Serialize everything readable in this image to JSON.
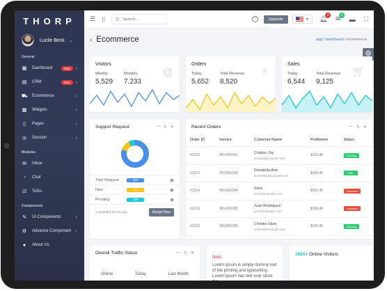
{
  "brand": "THORP",
  "user": {
    "name": "Lucile Beck"
  },
  "colors": {
    "accent_cyan": "#1fc8d8",
    "accent_blue": "#4a8fe7",
    "accent_yellow": "#f5c518",
    "pending": "#2ecc71",
    "paid": "#2ecc71",
    "canceled": "#e74c3c",
    "sidebar": "#2d3552"
  },
  "sidebar": {
    "section_general": "General",
    "general": [
      {
        "icon": "dashboard-icon",
        "glyph": "▦",
        "label": "Dashboard",
        "badge": "New",
        "has_chevron": true
      },
      {
        "icon": "crm-icon",
        "glyph": "▤",
        "label": "CRM",
        "badge": "New",
        "has_chevron": true
      },
      {
        "icon": "ecommerce-icon",
        "glyph": "⛟",
        "label": "Ecommerce",
        "badge": "",
        "has_chevron": true
      },
      {
        "icon": "widgets-icon",
        "glyph": "▩",
        "label": "Widgets",
        "badge": "",
        "has_chevron": true
      },
      {
        "icon": "pages-icon",
        "glyph": "▯",
        "label": "Pages",
        "badge": "",
        "has_chevron": true
      },
      {
        "icon": "session-icon",
        "glyph": "◎",
        "label": "Session",
        "badge": "",
        "has_chevron": true
      }
    ],
    "section_modules": "Modules",
    "modules": [
      {
        "icon": "inbox-icon",
        "glyph": "✉",
        "label": "Inbox"
      },
      {
        "icon": "chat-icon",
        "glyph": "◔",
        "label": "Chat"
      },
      {
        "icon": "todo-icon",
        "glyph": "☑",
        "label": "ToDo"
      }
    ],
    "section_components": "Components",
    "components": [
      {
        "icon": "ui-components-icon",
        "glyph": "✎",
        "label": "UI Components",
        "has_chevron": true
      },
      {
        "icon": "advance-component-icon",
        "glyph": "⚙",
        "label": "Advance Component",
        "has_chevron": true
      },
      {
        "icon": "about-us-icon",
        "glyph": "●",
        "label": "About Us",
        "has_chevron": false
      }
    ]
  },
  "topbar": {
    "search_placeholder": "Search...",
    "upgrade_label": "Upgrade",
    "notification_count": "2",
    "message_count": "4"
  },
  "page": {
    "title": "Ecommerce",
    "breadcrumb": {
      "app": "app",
      "dashboard": "dashboard",
      "current": "ecommerce"
    }
  },
  "stats": {
    "visitors": {
      "title": "Visitors",
      "weekly_label": "Weekly",
      "weekly_value": "5,529",
      "monthly_label": "Monthly",
      "monthly_value": "7,233"
    },
    "orders": {
      "title": "Orders",
      "today_label": "Today",
      "today_value": "5,652",
      "revenue_label": "Total Revenue",
      "revenue_value": "8,520"
    },
    "sales": {
      "title": "Sales",
      "today_label": "Today",
      "today_value": "6,544",
      "revenue_label": "Total Revenue",
      "revenue_value": "9,125"
    }
  },
  "support": {
    "title": "Support Request",
    "donut": [
      0.8,
      0.12,
      0.08
    ],
    "rows": [
      {
        "label": "Total Request",
        "value": "250",
        "color": "#4a8fe7"
      },
      {
        "label": "New",
        "value": "25",
        "color": "#f5c518"
      },
      {
        "label": "Pending",
        "value": "125",
        "color": "#1fc8d8"
      }
    ],
    "updated": "Updated 10 min ago",
    "assign_label": "Assign Now"
  },
  "orders_table": {
    "title": "Recent Orders",
    "headers": [
      "Order ID",
      "Invoice",
      "Customer Name",
      "Profitment",
      "Status"
    ],
    "rows": [
      {
        "id": "#1212",
        "invoice": "INV-001001",
        "name": "Cristian Joy",
        "email": "cristian@example.com",
        "amount": "$120.40",
        "status": "Pending",
        "status_color": "#2ecc71"
      },
      {
        "id": "#1213",
        "invoice": "INV-001002",
        "name": "Donatella Arin",
        "email": "donatella@example.com",
        "amount": "$180.40",
        "status": "Paid",
        "status_color": "#2ecc71"
      },
      {
        "id": "#1214",
        "invoice": "INV-001004",
        "name": "Slurs",
        "email": "slurs@example.com",
        "amount": "$200.40",
        "status": "Canceled",
        "status_color": "#e74c3c"
      },
      {
        "id": "#1215",
        "invoice": "INV-001005",
        "name": "Juan Rodriquez",
        "email": "juan@example.com",
        "amount": "$158.40",
        "status": "Canceled",
        "status_color": "#e74c3c"
      },
      {
        "id": "#1216",
        "invoice": "INV-001006",
        "name": "Christia Slurs",
        "email": "christia@example.com",
        "amount": "$120.40",
        "status": "Pending",
        "status_color": "#2ecc71"
      }
    ]
  },
  "traffic": {
    "title": "Overall Traffic Status",
    "col1": "Online",
    "col2": "Today",
    "col3": "Last Month"
  },
  "note": {
    "title": "Note:",
    "body": "Lorem Ipsum is simply dummy text of the printing and typesetting. Lorem Ipsum has text ever since the"
  },
  "online_visitors": {
    "count": "1655+",
    "label": "Online Visitors"
  }
}
